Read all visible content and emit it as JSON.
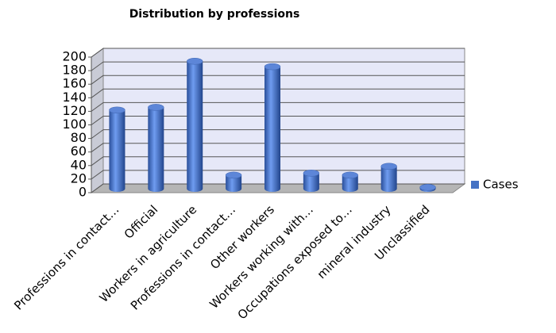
{
  "chart_data": {
    "type": "bar",
    "title": "Distribution by professions",
    "categories": [
      "Professions in contact…",
      "Official",
      "Workers in agriculture",
      "Professions in contact…",
      "Other workers",
      "Workers working with…",
      "Occupations exposed to…",
      "mineral industry",
      "Unclassified"
    ],
    "series": [
      {
        "name": "Cases",
        "color": "#4472c4",
        "values": [
          116,
          120,
          188,
          20,
          180,
          23,
          20,
          33,
          2
        ]
      }
    ],
    "ylim": [
      0,
      200
    ],
    "yticks": [
      0,
      20,
      40,
      60,
      80,
      100,
      120,
      140,
      160,
      180,
      200
    ],
    "grid": true,
    "legend": "right"
  }
}
